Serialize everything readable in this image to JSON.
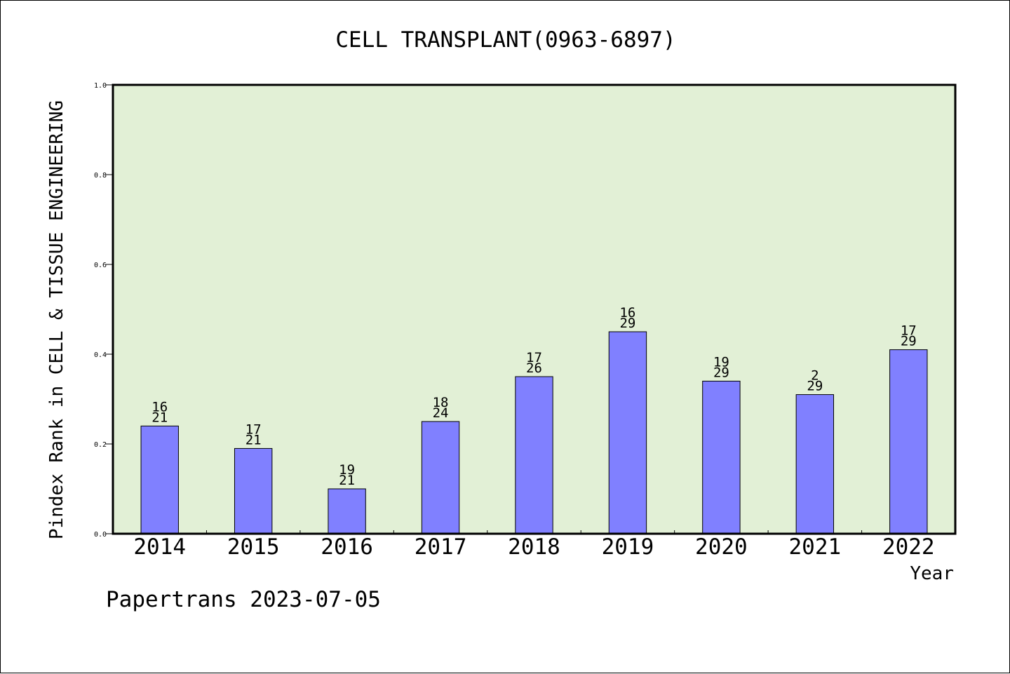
{
  "chart_data": {
    "type": "bar",
    "title": "CELL TRANSPLANT(0963-6897)",
    "xlabel": "Year",
    "ylabel": "Pindex Rank in CELL & TISSUE ENGINEERING",
    "footer": "Papertrans 2023-07-05",
    "categories": [
      "2014",
      "2015",
      "2016",
      "2017",
      "2018",
      "2019",
      "2020",
      "2021",
      "2022"
    ],
    "values": [
      0.24,
      0.19,
      0.1,
      0.25,
      0.35,
      0.45,
      0.34,
      0.31,
      0.41
    ],
    "rank": [
      "16",
      "17",
      "19",
      "18",
      "17",
      "16",
      "19",
      "2",
      "17"
    ],
    "total": [
      "21",
      "21",
      "21",
      "24",
      "26",
      "29",
      "29",
      "29",
      "29"
    ],
    "ylim": [
      0,
      1.0
    ],
    "yticks": [
      "0.0",
      "0.2",
      "0.4",
      "0.6",
      "0.8",
      "1.0"
    ],
    "grid": false,
    "colors": {
      "plot_background": "#e2f0d6",
      "bar_fill": "#8080ff",
      "bar_stroke": "#000000"
    }
  }
}
